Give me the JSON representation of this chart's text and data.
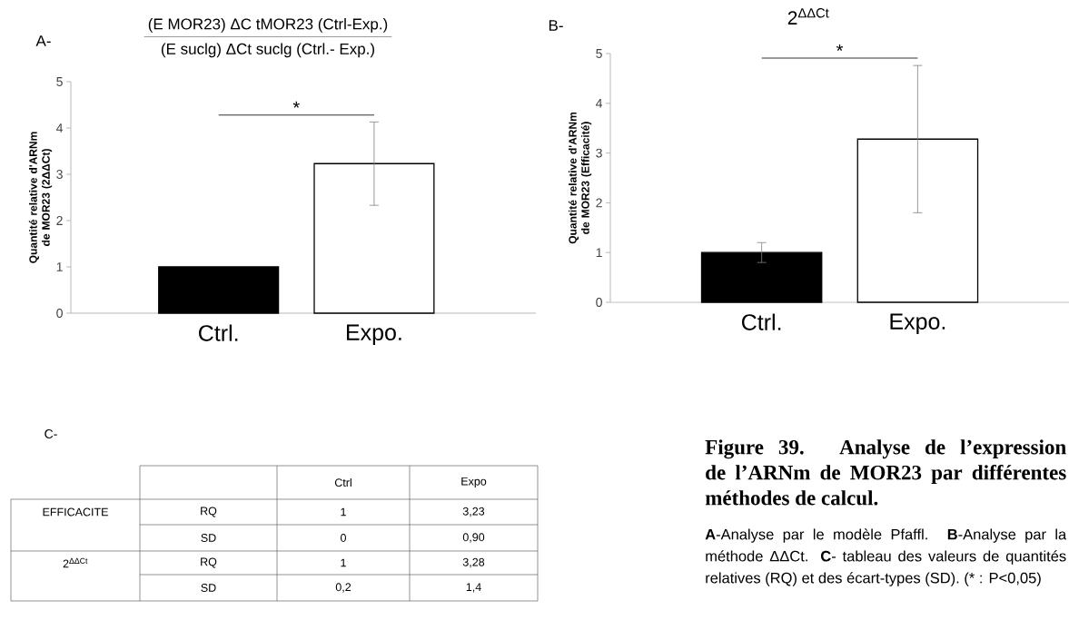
{
  "chart_data": [
    {
      "type": "bar",
      "title": "(E MOR23) ΔC tMOR23 (Ctrl-Exp.)",
      "subtitle": "(E suclg) ΔCt suclg (Ctrl.- Exp.)",
      "ylabel": "Quantité relative d'ARNm de MOR23 (2ΔΔCt)",
      "categories": [
        "Ctrl.",
        "Expo."
      ],
      "values": [
        1,
        3.23
      ],
      "errors": [
        null,
        0.9
      ],
      "colors": [
        "#000000",
        "#ffffff"
      ],
      "ylim": [
        0,
        5
      ],
      "yticks": [
        0,
        1,
        2,
        3,
        4,
        5
      ],
      "annotations": [
        "A-",
        "*"
      ]
    },
    {
      "type": "bar",
      "title": "2$^{ΔΔCt}$",
      "ylabel": "Quantité relative d'ARNm de MOR23 (Efficacité)",
      "categories": [
        "Ctrl.",
        "Expo."
      ],
      "values": [
        1,
        3.28
      ],
      "errors": [
        0.2,
        1.48
      ],
      "colors": [
        "#000000",
        "#ffffff"
      ],
      "ylim": [
        0,
        5
      ],
      "yticks": [
        0,
        1,
        2,
        3,
        4,
        5
      ],
      "annotations": [
        "B-",
        "*"
      ]
    },
    {
      "type": "other",
      "title": "C-",
      "annotations": [
        "Ctrl",
        "Expo",
        "EFFICACITE",
        "RQ",
        "1",
        "3,23",
        "SD",
        "0",
        "0,90",
        "2$^{ΔΔCt}$",
        "RQ",
        "1",
        "3,28",
        "SD",
        "0,2",
        "1,4"
      ]
    },
    {
      "type": "other",
      "title": "Figure 39. Analyse de l’expression de l’ARNm de MOR23 par différentes méthodes de calcul.",
      "annotations": [
        "**A**-Analyse par le modèle Pfaffl. **B**-Analyse par la méthode ΔΔCt. **C**- tableau des valeurs de quantités relatives (RQ) et des écart-types (SD). (* : P<0,05)"
      ]
    }
  ]
}
